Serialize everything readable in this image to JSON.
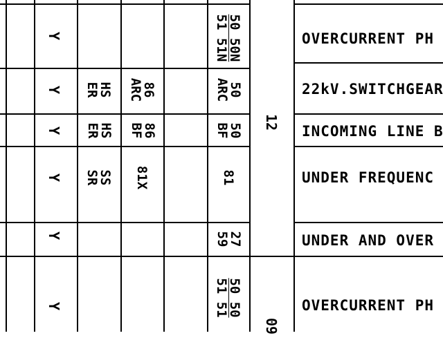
{
  "rows": [
    {
      "flag": "Y",
      "col_b": "",
      "col_c": "",
      "col_e": [
        "50 50N",
        "51 51N"
      ],
      "description": "OVERCURRENT PH"
    },
    {
      "flag": "Y",
      "col_b": "HS\nER",
      "col_c": "86\nARC",
      "col_e": [
        "50",
        "ARC"
      ],
      "description": "22kV.SWITCHGEAR"
    },
    {
      "flag": "Y",
      "col_b": "HS\nER",
      "col_c": "86\nBF",
      "col_e": [
        "50",
        "BF"
      ],
      "description": "INCOMING LINE BF"
    },
    {
      "flag": "Y",
      "col_b": "SS\nSR",
      "col_c": "81X",
      "col_e": [
        "81"
      ],
      "description": "UNDER FREQUENC"
    },
    {
      "flag": "Y",
      "col_b": "",
      "col_c": "",
      "col_e": [
        "27",
        "59"
      ],
      "description": "UNDER AND OVER"
    },
    {
      "flag": "Y",
      "col_b": "",
      "col_c": "",
      "col_e": [
        "50 50",
        "51 51"
      ],
      "description": "OVERCURRENT PH"
    }
  ],
  "group_numbers": [
    "12",
    "09"
  ]
}
